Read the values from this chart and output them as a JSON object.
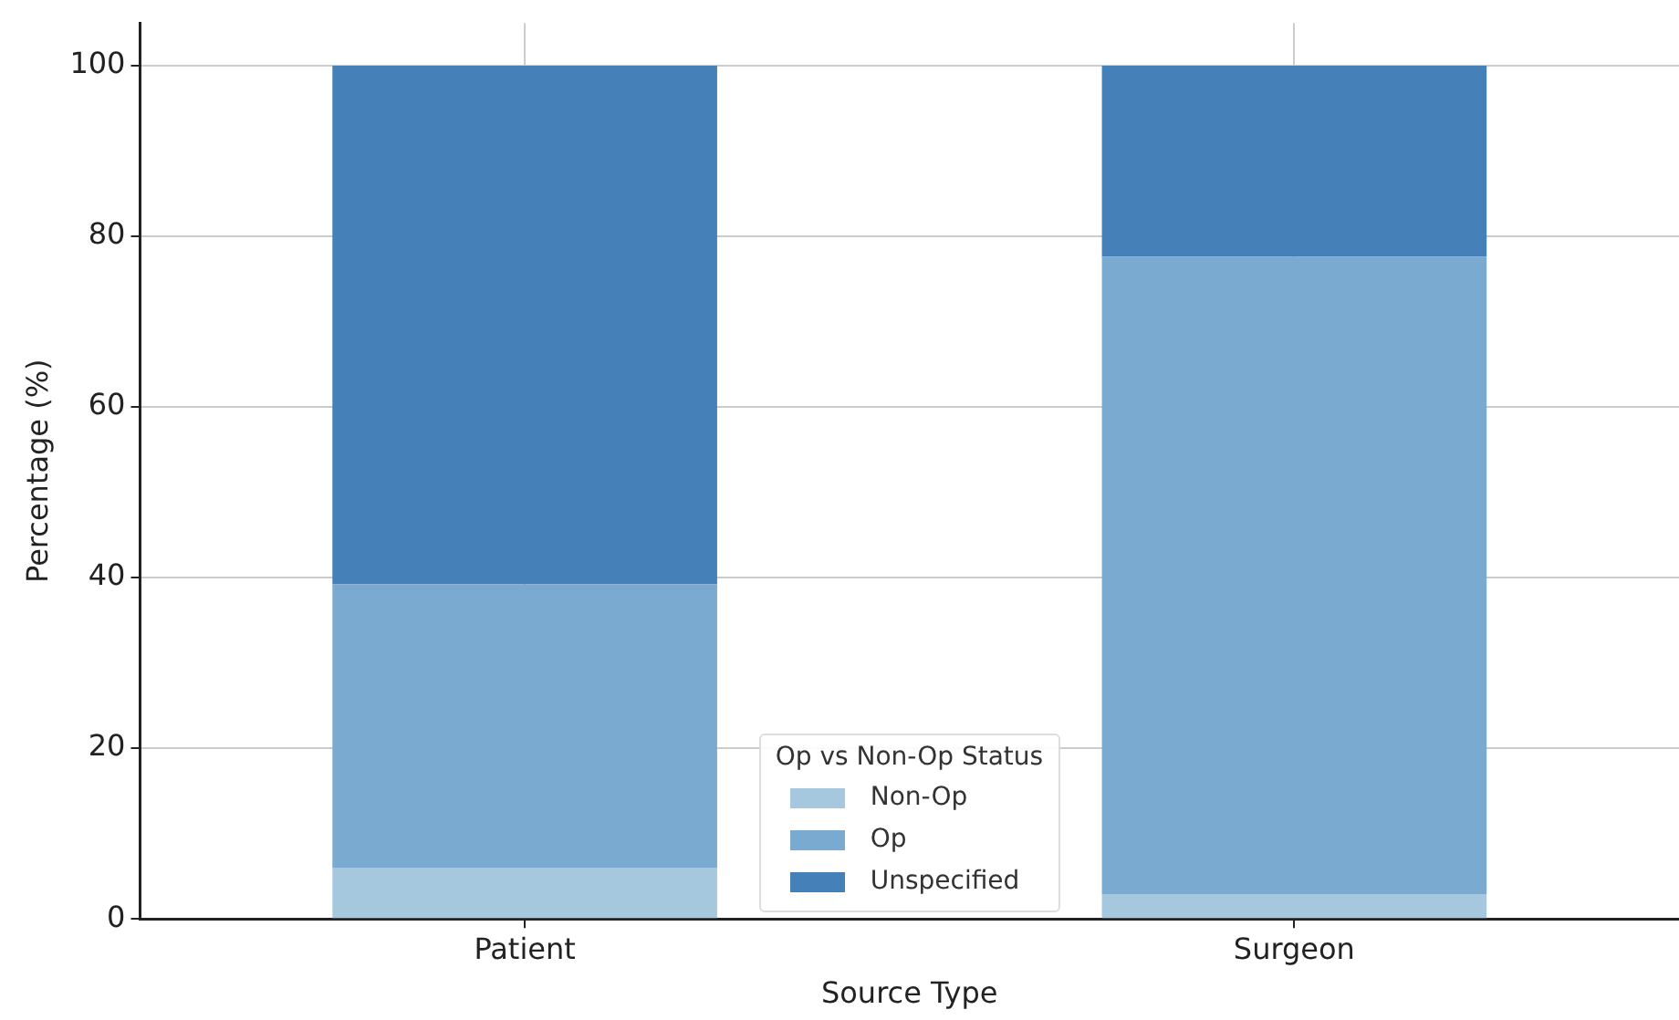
{
  "chart_data": {
    "type": "bar",
    "stacked": true,
    "xlabel": "Source Type",
    "ylabel": "Percentage (%)",
    "legend_title": "Op vs Non-Op Status",
    "legend": "bottom",
    "grid": true,
    "categories": [
      "Patient",
      "Surgeon"
    ],
    "series": [
      {
        "name": "Non-Op",
        "color": "#a6c8df",
        "values": [
          6,
          2.9
        ]
      },
      {
        "name": "Op",
        "color": "#7aaad0",
        "values": [
          33.2,
          74.7
        ]
      },
      {
        "name": "Unspecified",
        "color": "#4680b8",
        "values": [
          60.8,
          22.4
        ]
      }
    ],
    "ylim": [
      0,
      105
    ],
    "yticks": [
      0,
      20,
      40,
      60,
      80,
      100
    ]
  }
}
